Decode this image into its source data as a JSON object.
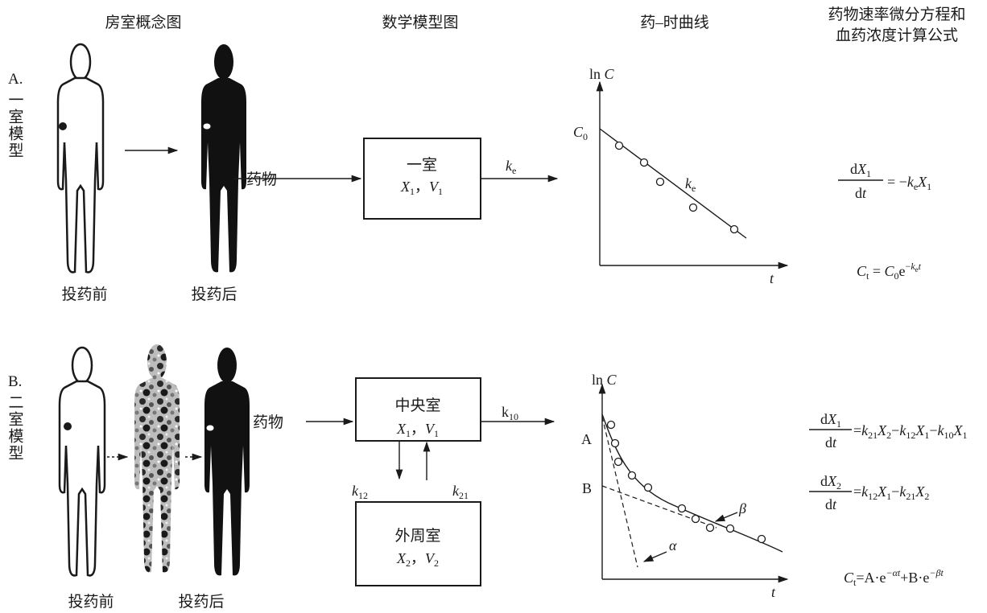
{
  "header": {
    "concept": "房室概念图",
    "math": "数学模型图",
    "curve": "药–时曲线",
    "formula": [
      "药物速率微分方程和",
      "血药浓度计算公式"
    ]
  },
  "model_a": {
    "label": "A.",
    "name": "一室模型",
    "before": "投药前",
    "after": "投药后",
    "drug": "药物",
    "compartment": {
      "name": "一室",
      "vars": [
        "X",
        "1",
        "，",
        "V",
        "1"
      ]
    },
    "rate": [
      "k",
      "e"
    ],
    "graph": {
      "y_label": [
        "ln ",
        "C"
      ],
      "intercept": [
        "C",
        "0"
      ],
      "slope": [
        "k",
        "e"
      ],
      "x_label": "t"
    },
    "equation": {
      "numerator": [
        "d",
        "X",
        "1"
      ],
      "denominator": [
        "d",
        "t"
      ],
      "rhs": [
        "= −",
        "k",
        "e",
        "X",
        "1"
      ]
    },
    "concentration": [
      "C",
      "t",
      " = ",
      "C",
      "0",
      "e",
      "−",
      "k",
      "e",
      "t"
    ]
  },
  "model_b": {
    "label": "B.",
    "name": "二室模型",
    "before": "投药前",
    "after": "投药后",
    "drug": "药物",
    "central": {
      "name": "中央室",
      "vars": [
        "X",
        "1",
        "，",
        "V",
        "1"
      ]
    },
    "peripheral": {
      "name": "外周室",
      "vars": [
        "X",
        "2",
        "，",
        "V",
        "2"
      ]
    },
    "k10": [
      "k",
      "10"
    ],
    "k12": [
      "k",
      "12"
    ],
    "k21": [
      "k",
      "21"
    ],
    "graph": {
      "y_label": [
        "ln ",
        "C"
      ],
      "a": "A",
      "b": "B",
      "beta": "β",
      "alpha": "α",
      "x_label": "t"
    },
    "equation1": {
      "numerator": [
        "d",
        "X",
        "1"
      ],
      "denominator": [
        "d",
        "t"
      ],
      "rhs": [
        "=",
        "k",
        "21",
        "X",
        "2",
        "−",
        "k",
        "12",
        "X",
        "1",
        "−",
        "k",
        "10",
        "X",
        "1"
      ]
    },
    "equation2": {
      "numerator": [
        "d",
        "X",
        "2"
      ],
      "denominator": [
        "d",
        "t"
      ],
      "rhs": [
        "=",
        "k",
        "12",
        "X",
        "1",
        "−",
        "k",
        "21",
        "X",
        "2"
      ]
    },
    "concentration": [
      "C",
      "t",
      "=A·e",
      "−αt",
      "+B·e",
      "−βt"
    ]
  }
}
